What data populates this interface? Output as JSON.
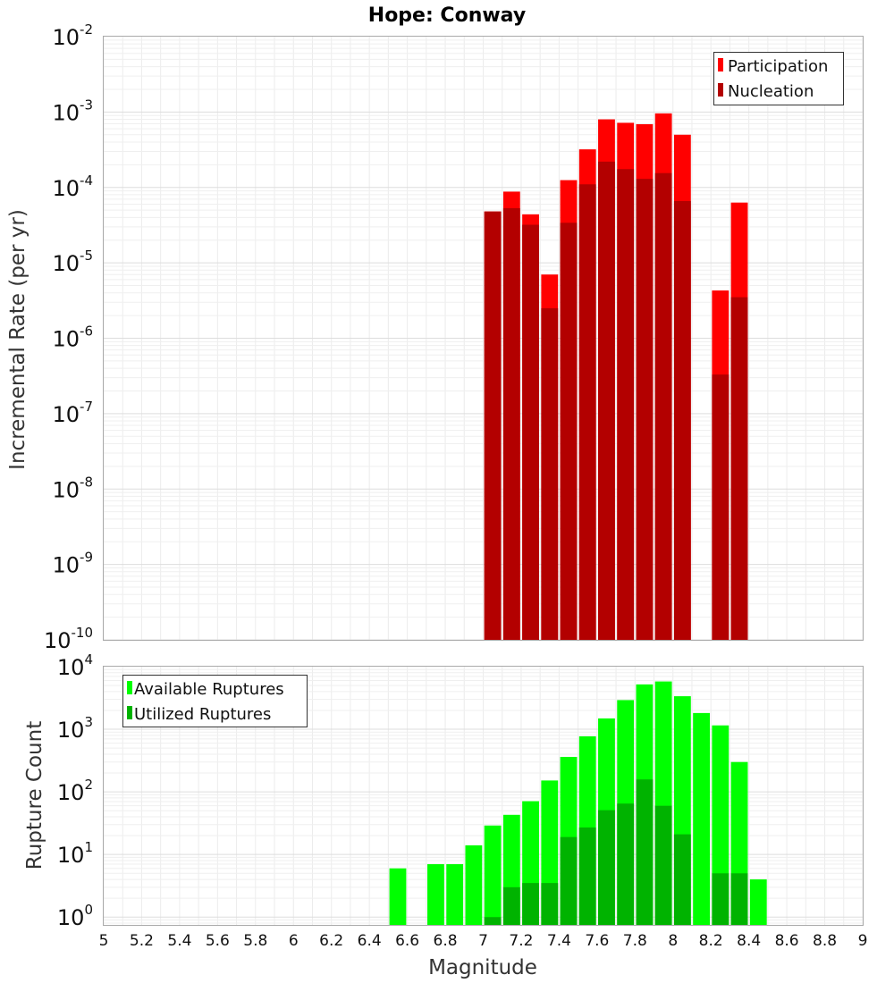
{
  "chart_data": [
    {
      "type": "bar",
      "title": "Hope: Conway",
      "ylabel": "Incremental Rate (per yr)",
      "xlabel": "",
      "yscale": "log",
      "ylim": [
        1e-10,
        0.01
      ],
      "xlim": [
        5,
        9
      ],
      "y_tick_exponents": [
        -10,
        -9,
        -8,
        -7,
        -6,
        -5,
        -4,
        -3,
        -2
      ],
      "bin_width": 0.1,
      "legend_position": "top-right",
      "grid": true,
      "series": [
        {
          "name": "Participation",
          "color": "#ff0000",
          "x": [
            7.05,
            7.15,
            7.25,
            7.35,
            7.45,
            7.55,
            7.65,
            7.75,
            7.85,
            7.95,
            8.05,
            8.25,
            8.35
          ],
          "values": [
            4.8e-05,
            8.8e-05,
            4.4e-05,
            7e-06,
            0.000125,
            0.00032,
            0.0008,
            0.00072,
            0.00069,
            0.00096,
            0.0005,
            4.3e-06,
            6.3e-05
          ]
        },
        {
          "name": "Nucleation",
          "color": "#b30000",
          "x": [
            7.05,
            7.15,
            7.25,
            7.35,
            7.45,
            7.55,
            7.65,
            7.75,
            7.85,
            7.95,
            8.05,
            8.25,
            8.35
          ],
          "values": [
            4.8e-05,
            5.3e-05,
            3.2e-05,
            2.5e-06,
            3.4e-05,
            0.00011,
            0.00022,
            0.000175,
            0.00013,
            0.000155,
            6.6e-05,
            3.3e-07,
            3.5e-06
          ]
        }
      ]
    },
    {
      "type": "bar",
      "title": "",
      "ylabel": "Rupture Count",
      "xlabel": "Magnitude",
      "yscale": "log",
      "ylim": [
        0.75,
        10000
      ],
      "xlim": [
        5,
        9
      ],
      "y_tick_exponents": [
        0,
        1,
        2,
        3,
        4
      ],
      "x_ticks": [
        "5",
        "5.2",
        "5.4",
        "5.6",
        "5.8",
        "6",
        "6.2",
        "6.4",
        "6.6",
        "6.8",
        "7",
        "7.2",
        "7.4",
        "7.6",
        "7.8",
        "8",
        "8.2",
        "8.4",
        "8.6",
        "8.8",
        "9"
      ],
      "bin_width": 0.1,
      "legend_position": "top-left",
      "grid": true,
      "series": [
        {
          "name": "Available Ruptures",
          "color": "#00ff00",
          "x": [
            6.55,
            6.75,
            6.85,
            6.95,
            7.05,
            7.15,
            7.25,
            7.35,
            7.45,
            7.55,
            7.65,
            7.75,
            7.85,
            7.95,
            8.05,
            8.15,
            8.25,
            8.35,
            8.45
          ],
          "values": [
            6,
            7,
            7,
            14,
            29,
            43,
            71,
            152,
            362,
            771,
            1490,
            2923,
            5207,
            5802,
            3371,
            1818,
            1153,
            300,
            4
          ]
        },
        {
          "name": "Utilized Ruptures",
          "color": "#00b300",
          "x": [
            7.05,
            7.15,
            7.25,
            7.35,
            7.45,
            7.55,
            7.65,
            7.75,
            7.85,
            7.95,
            8.05,
            8.25,
            8.35
          ],
          "values": [
            1,
            3,
            3.5,
            3.5,
            19,
            27,
            51,
            65,
            158,
            60,
            21,
            5,
            5
          ]
        }
      ]
    }
  ]
}
